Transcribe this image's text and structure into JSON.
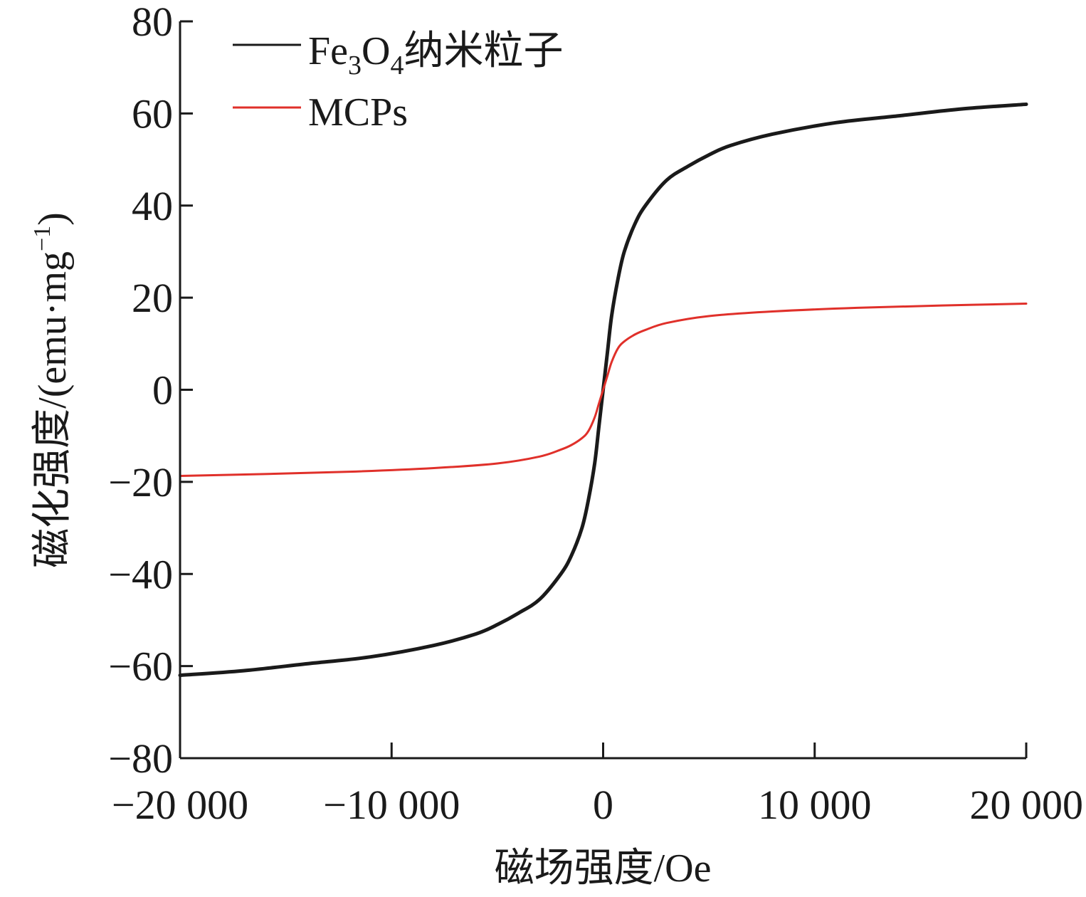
{
  "chart_data": {
    "type": "line",
    "title": "",
    "xlabel": "磁场强度/Oe",
    "ylabel_main": "磁化强度/(emu·mg",
    "ylabel_sup": "−1",
    "ylabel_close": ")",
    "xlim": [
      -20000,
      20000
    ],
    "ylim": [
      -80,
      80
    ],
    "xticks": [
      -20000,
      -10000,
      0,
      10000,
      20000
    ],
    "xtick_labels": [
      "−20 000",
      "−10 000",
      "0",
      "10 000",
      "20 000"
    ],
    "yticks": [
      -80,
      -60,
      -40,
      -20,
      0,
      20,
      40,
      60,
      80
    ],
    "ytick_labels": [
      "−80",
      "−60",
      "−40",
      "−20",
      "0",
      "20",
      "40",
      "60",
      "80"
    ],
    "grid": false,
    "legend_position": "top-left",
    "series": [
      {
        "name": "Fe3O4纳米粒子",
        "legend_parts": {
          "base": "Fe",
          "sub1": "3",
          "mid": "O",
          "sub2": "4",
          "tail": "纳米粒子"
        },
        "color": "#1a1a1a",
        "x": [
          -20000,
          -17000,
          -14000,
          -11000,
          -8000,
          -6000,
          -5000,
          -4000,
          -3000,
          -2000,
          -1500,
          -1000,
          -700,
          -400,
          -200,
          0,
          200,
          400,
          700,
          1000,
          1500,
          2000,
          3000,
          4000,
          5000,
          6000,
          8000,
          11000,
          14000,
          17000,
          20000
        ],
        "y": [
          -62,
          -61,
          -59.5,
          -58,
          -55.5,
          -53,
          -51,
          -48.5,
          -45.5,
          -40,
          -36,
          -30,
          -24,
          -16,
          -8,
          0,
          8,
          16,
          24,
          30,
          36,
          40,
          45.5,
          48.5,
          51,
          53,
          55.5,
          58,
          59.5,
          61,
          62
        ]
      },
      {
        "name": "MCPs",
        "color": "#e0302a",
        "x": [
          -20000,
          -16000,
          -12000,
          -8000,
          -5000,
          -3000,
          -2000,
          -1500,
          -1000,
          -700,
          -400,
          -200,
          0,
          200,
          400,
          700,
          1000,
          1500,
          2000,
          3000,
          5000,
          8000,
          12000,
          16000,
          20000
        ],
        "y": [
          -18.7,
          -18.3,
          -17.8,
          -17,
          -16,
          -14.5,
          -13,
          -12,
          -10.5,
          -9,
          -6,
          -3,
          0,
          3,
          6,
          9,
          10.5,
          12,
          13,
          14.5,
          16,
          17,
          17.8,
          18.3,
          18.7
        ]
      }
    ]
  }
}
